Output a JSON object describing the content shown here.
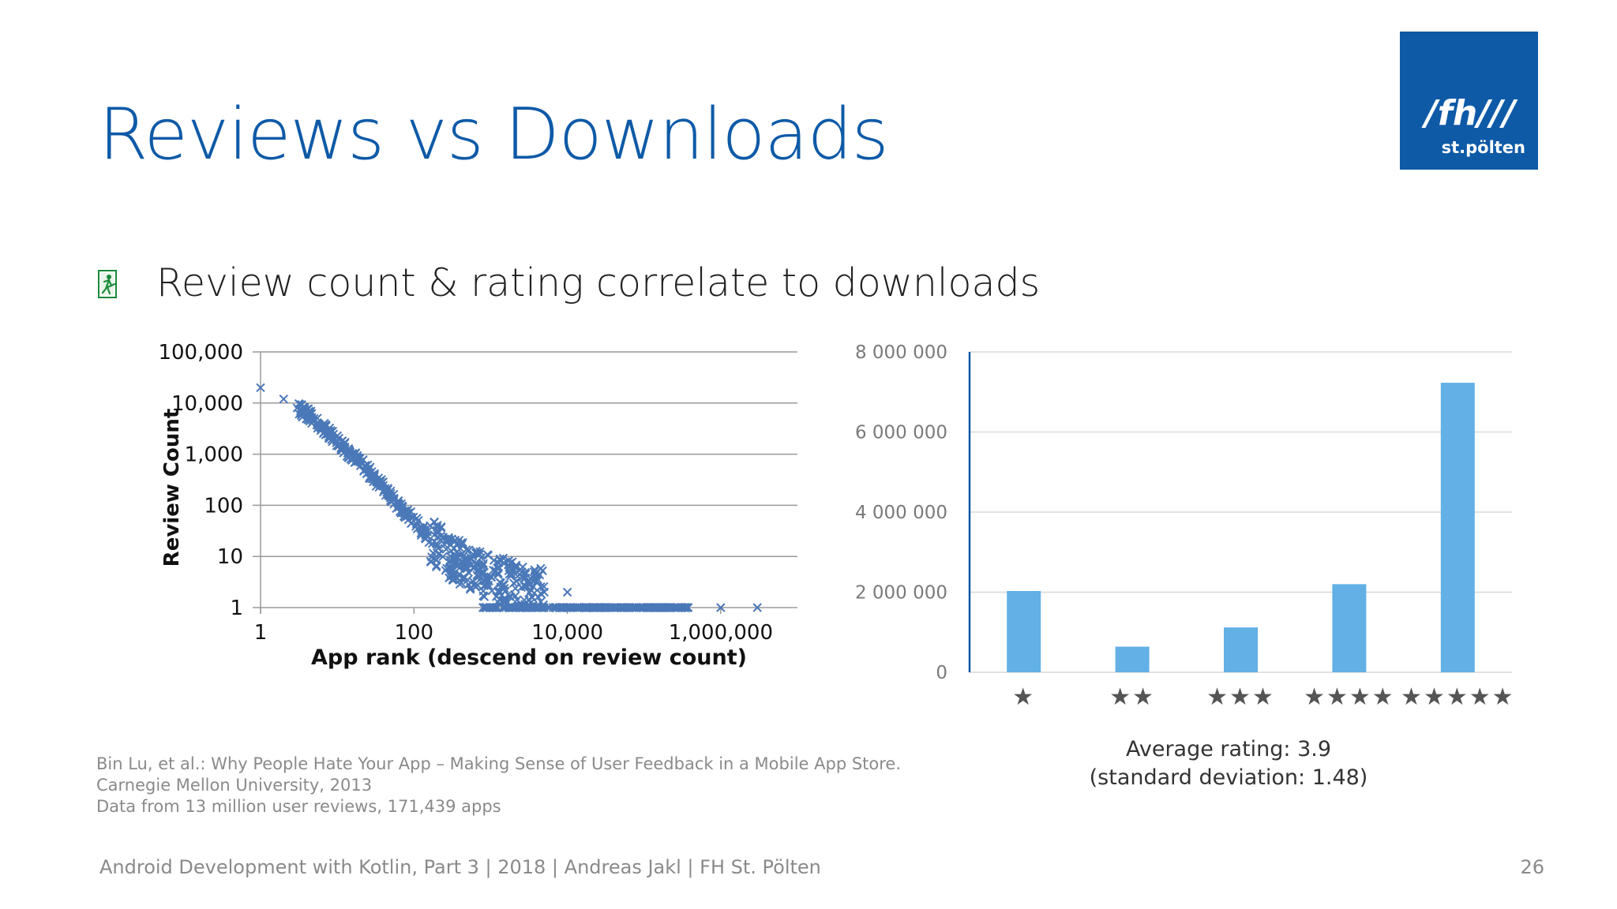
{
  "slide": {
    "title": "Reviews vs Downloads",
    "bullet": "Review count & rating correlate to downloads",
    "logo": {
      "line1": "/fh///",
      "line2": "st.pölten"
    },
    "accent_color": "#0e5aa7",
    "average_rating": {
      "line1": "Average rating: 3.9",
      "line2": "(standard deviation: 1.48)"
    },
    "citation": [
      "Bin Lu, et al.: Why People Hate Your App – Making Sense of User Feedback in a Mobile App Store.",
      "Carnegie Mellon University, 2013",
      "Data from 13 million user reviews, 171,439 apps"
    ],
    "footer": "Android Development with Kotlin, Part 3 | 2018 | Andreas Jakl | FH St. Pölten",
    "page_number": "26"
  },
  "chart_data": [
    {
      "type": "scatter",
      "title": "",
      "xlabel": "App rank (descend on review count)",
      "ylabel": "Review Count",
      "xscale": "log",
      "yscale": "log",
      "xlim": [
        1,
        10000000
      ],
      "ylim": [
        1,
        100000
      ],
      "x_ticks": [
        1,
        100,
        10000,
        1000000
      ],
      "x_tick_labels": [
        "1",
        "100",
        "10,000",
        "1,000,000"
      ],
      "y_ticks": [
        1,
        10,
        100,
        1000,
        10000,
        100000
      ],
      "y_tick_labels": [
        "1",
        "10",
        "100",
        "1,000",
        "10,000",
        "100,000"
      ],
      "marker": "x",
      "color": "#4a78b8",
      "grid": true,
      "sample_points": [
        [
          1,
          20000
        ],
        [
          2,
          12000
        ],
        [
          3,
          8000
        ],
        [
          5,
          5000
        ],
        [
          8,
          2500
        ],
        [
          10,
          1800
        ],
        [
          20,
          700
        ],
        [
          30,
          350
        ],
        [
          50,
          150
        ],
        [
          80,
          70
        ],
        [
          150,
          25
        ],
        [
          300,
          10
        ],
        [
          500,
          6
        ],
        [
          1000,
          4
        ],
        [
          2000,
          3
        ],
        [
          5000,
          2
        ],
        [
          10000,
          2
        ],
        [
          30000,
          1
        ],
        [
          100000,
          1
        ],
        [
          300000,
          1
        ],
        [
          1000000,
          1
        ],
        [
          3000000,
          1
        ]
      ]
    },
    {
      "type": "bar",
      "title": "",
      "categories": [
        "★",
        "★★",
        "★★★",
        "★★★★",
        "★★★★★"
      ],
      "values": [
        2030000,
        640000,
        1120000,
        2200000,
        7230000
      ],
      "ylim": [
        0,
        8000000
      ],
      "y_ticks": [
        0,
        2000000,
        4000000,
        6000000,
        8000000
      ],
      "y_tick_labels": [
        "0",
        "2 000 000",
        "4 000 000",
        "6 000 000",
        "8 000 000"
      ],
      "color": "#62b0e5",
      "grid": true
    }
  ]
}
